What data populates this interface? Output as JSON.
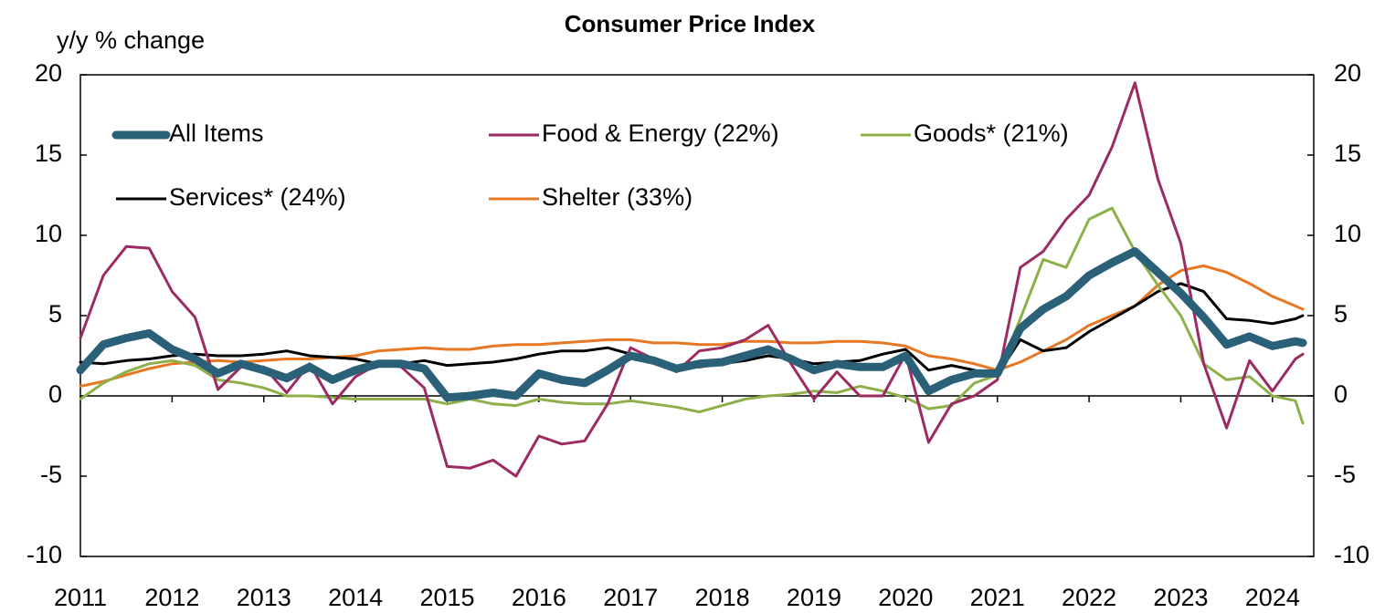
{
  "chart_data": {
    "type": "line",
    "title": "Consumer Price Index",
    "y_label": "y/y % change",
    "x": [
      2011,
      2011.25,
      2011.5,
      2011.75,
      2012,
      2012.25,
      2012.5,
      2012.75,
      2013,
      2013.25,
      2013.5,
      2013.75,
      2014,
      2014.25,
      2014.5,
      2014.75,
      2015,
      2015.25,
      2015.5,
      2015.75,
      2016,
      2016.25,
      2016.5,
      2016.75,
      2017,
      2017.25,
      2017.5,
      2017.75,
      2018,
      2018.25,
      2018.5,
      2018.75,
      2019,
      2019.25,
      2019.5,
      2019.75,
      2020,
      2020.25,
      2020.5,
      2020.75,
      2021,
      2021.25,
      2021.5,
      2021.75,
      2022,
      2022.25,
      2022.5,
      2022.75,
      2023,
      2023.25,
      2023.5,
      2023.75,
      2024,
      2024.25,
      2024.33
    ],
    "series": [
      {
        "name": "All Items",
        "color": "#2b6079",
        "values": [
          1.6,
          3.2,
          3.6,
          3.9,
          2.9,
          2.3,
          1.4,
          2.0,
          1.6,
          1.1,
          1.8,
          1.0,
          1.6,
          2.0,
          2.0,
          1.7,
          -0.1,
          0.0,
          0.2,
          0.0,
          1.4,
          1.0,
          0.8,
          1.6,
          2.5,
          2.2,
          1.7,
          2.0,
          2.1,
          2.5,
          2.9,
          2.3,
          1.6,
          2.0,
          1.8,
          1.8,
          2.5,
          0.3,
          1.0,
          1.4,
          1.4,
          4.2,
          5.4,
          6.2,
          7.5,
          8.3,
          9.0,
          7.7,
          6.4,
          4.9,
          3.2,
          3.7,
          3.1,
          3.4,
          3.3
        ]
      },
      {
        "name": "Food & Energy (22%)",
        "color": "#9b2b62",
        "values": [
          3.6,
          7.5,
          9.3,
          9.2,
          6.5,
          4.9,
          0.4,
          1.8,
          1.8,
          0.2,
          2.0,
          -0.5,
          1.2,
          2.0,
          1.8,
          0.5,
          -4.4,
          -4.5,
          -4.0,
          -5.0,
          -2.5,
          -3.0,
          -2.8,
          -0.5,
          3.0,
          2.3,
          1.5,
          2.8,
          3.0,
          3.5,
          4.4,
          2.0,
          -0.2,
          1.5,
          0.0,
          0.0,
          2.6,
          -2.9,
          -0.5,
          0.0,
          1.0,
          8.0,
          9.0,
          11.0,
          12.5,
          15.5,
          19.5,
          13.5,
          9.5,
          2.0,
          -2.0,
          2.2,
          0.3,
          2.3,
          2.6
        ]
      },
      {
        "name": "Goods* (21%)",
        "color": "#8db04a",
        "values": [
          -0.2,
          0.8,
          1.5,
          2.0,
          2.2,
          1.9,
          1.0,
          0.8,
          0.5,
          0.0,
          0.0,
          -0.1,
          -0.2,
          -0.2,
          -0.2,
          -0.2,
          -0.5,
          -0.2,
          -0.5,
          -0.6,
          -0.2,
          -0.4,
          -0.5,
          -0.5,
          -0.3,
          -0.5,
          -0.7,
          -1.0,
          -0.6,
          -0.2,
          0.0,
          0.1,
          0.3,
          0.2,
          0.6,
          0.3,
          -0.1,
          -0.8,
          -0.6,
          0.8,
          1.3,
          4.8,
          8.5,
          8.0,
          11.0,
          11.7,
          9.0,
          6.9,
          5.0,
          2.0,
          1.0,
          1.2,
          0.0,
          -0.3,
          -1.7
        ]
      },
      {
        "name": "Services* (24%)",
        "color": "#000000",
        "values": [
          2.1,
          2.0,
          2.2,
          2.3,
          2.5,
          2.6,
          2.5,
          2.5,
          2.6,
          2.8,
          2.5,
          2.4,
          2.3,
          2.0,
          2.0,
          2.2,
          1.9,
          2.0,
          2.1,
          2.3,
          2.6,
          2.8,
          2.8,
          3.0,
          2.6,
          2.2,
          1.8,
          1.8,
          2.0,
          2.2,
          2.5,
          2.3,
          2.0,
          2.1,
          2.2,
          2.6,
          2.9,
          1.6,
          1.9,
          1.6,
          1.3,
          3.5,
          2.8,
          3.0,
          4.0,
          4.8,
          5.6,
          6.5,
          7.0,
          6.5,
          4.8,
          4.7,
          4.5,
          4.8,
          5.0
        ]
      },
      {
        "name": "Shelter (33%)",
        "color": "#e87722",
        "values": [
          0.6,
          0.9,
          1.3,
          1.7,
          2.0,
          2.1,
          2.2,
          2.1,
          2.2,
          2.3,
          2.3,
          2.4,
          2.5,
          2.8,
          2.9,
          3.0,
          2.9,
          2.9,
          3.1,
          3.2,
          3.2,
          3.3,
          3.4,
          3.5,
          3.5,
          3.3,
          3.3,
          3.2,
          3.2,
          3.4,
          3.4,
          3.3,
          3.3,
          3.4,
          3.4,
          3.3,
          3.1,
          2.5,
          2.3,
          2.0,
          1.6,
          2.1,
          2.8,
          3.5,
          4.4,
          5.0,
          5.6,
          6.9,
          7.8,
          8.1,
          7.7,
          7.0,
          6.2,
          5.6,
          5.4
        ]
      }
    ],
    "xlim": [
      2011,
      2024.45
    ],
    "xticks": [
      2011,
      2012,
      2013,
      2014,
      2015,
      2016,
      2017,
      2018,
      2019,
      2020,
      2021,
      2022,
      2023,
      2024
    ],
    "ylim": [
      -10,
      20
    ],
    "yticks": [
      -10,
      -5,
      0,
      5,
      10,
      15,
      20
    ],
    "y2lim": [
      -10,
      20
    ],
    "y2ticks": [
      -10,
      -5,
      0,
      5,
      10,
      15,
      20
    ]
  }
}
